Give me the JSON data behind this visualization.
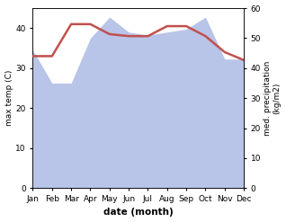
{
  "months": [
    "Jan",
    "Feb",
    "Mar",
    "Apr",
    "May",
    "Jun",
    "Jul",
    "Aug",
    "Sep",
    "Oct",
    "Nov",
    "Dec"
  ],
  "x": [
    0,
    1,
    2,
    3,
    4,
    5,
    6,
    7,
    8,
    9,
    10,
    11
  ],
  "temp": [
    33,
    33,
    41,
    41,
    38.5,
    38,
    38,
    40.5,
    40.5,
    38,
    34,
    32
  ],
  "precip": [
    46,
    35,
    35,
    50,
    57,
    52,
    51,
    52,
    53,
    57,
    43,
    43
  ],
  "temp_color": "#c0504d",
  "precip_fill_color": "#b8c4e8",
  "xlabel": "date (month)",
  "ylabel_left": "max temp (C)",
  "ylabel_right": "med. precipitation\n(kg/m2)",
  "ylim_left": [
    0,
    45
  ],
  "ylim_right": [
    0,
    60
  ],
  "yticks_left": [
    0,
    10,
    20,
    30,
    40
  ],
  "yticks_right": [
    0,
    10,
    20,
    30,
    40,
    50,
    60
  ],
  "background_color": "#ffffff"
}
